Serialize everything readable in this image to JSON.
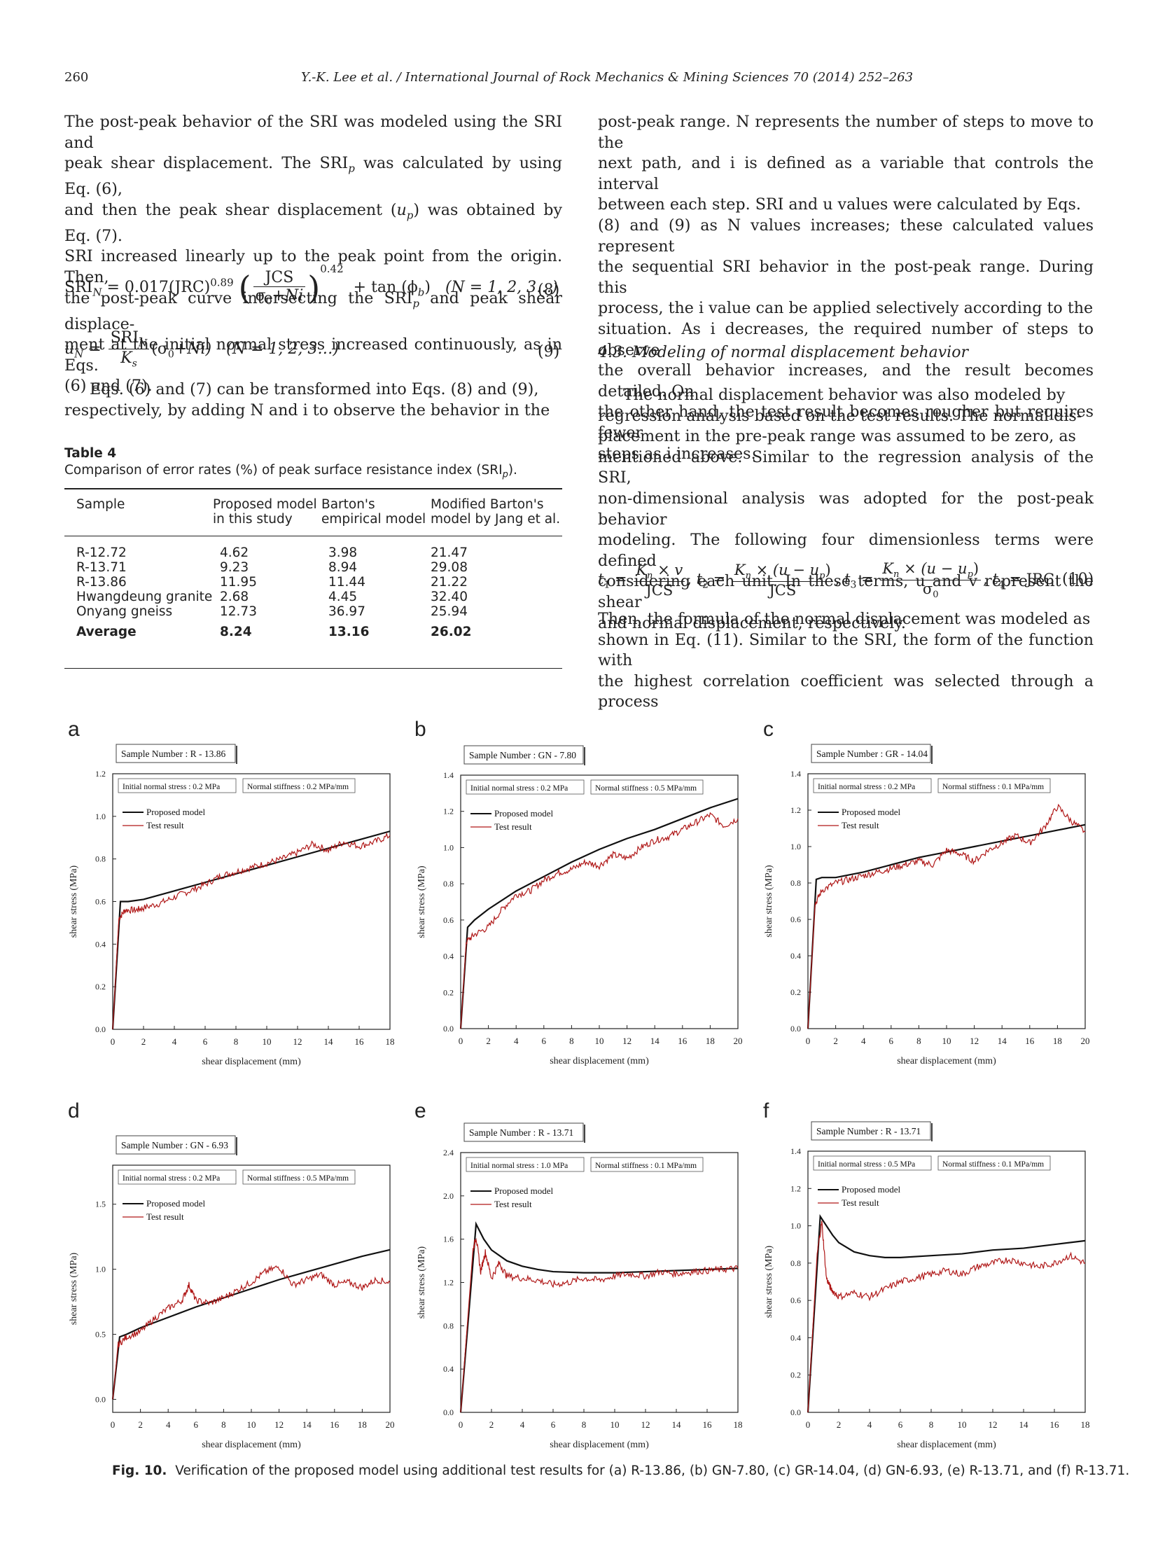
{
  "header": {
    "page_number": "260",
    "journal_line": "Y.-K. Lee et al. / International Journal of Rock Mechanics & Mining Sciences 70 (2014) 252–263"
  },
  "left_column": {
    "para1": [
      "The post-peak behavior of the SRI was modeled using the SRI and",
      "peak shear displacement. The SRI",
      " was calculated by using Eq. (6),",
      "and then the peak shear displacement (",
      ") was obtained by Eq. (7).",
      "SRI increased linearly up to the peak point from the origin. Then,",
      "the post-peak curve intersecting the SRI",
      " and peak shear displace-",
      "ment at the initial normal stress increased continuously, as in Eqs.",
      "(6) and (7)."
    ],
    "eq8": {
      "lhs": "SRI",
      "lhs_sub": "N",
      "coef": "= 0.017(JRC)",
      "exp1": "0.89",
      "num": "JCS",
      "den": "σ",
      "den_tail": "+Ni",
      "exp2": "0.42",
      "tail": "+ tan (ϕ",
      "tail_sub": "b",
      "cond": "(N = 1, 2, 3…)",
      "number": "(8)"
    },
    "eq9": {
      "lhs": "u",
      "lhs_sub": "N",
      "num": "SRI",
      "num_sub": "N",
      "den": "K",
      "den_sub": "s",
      "tail": "(σ",
      "tail2": "+Ni)",
      "cond": "(N = 1, 2, 3…)",
      "number": "(9)"
    },
    "para2": [
      "Eqs. (6) and (7) can be transformed into Eqs. (8) and (9),",
      "respectively, by adding N and i to observe the behavior in the"
    ]
  },
  "table4": {
    "label": "Table 4",
    "caption": "Comparison of error rates (%) of peak surface resistance index (SRI",
    "caption_sub": "p",
    "caption_end": ").",
    "headers": [
      [
        "Sample",
        ""
      ],
      [
        "Proposed model",
        "in this study"
      ],
      [
        "Barton's",
        "empirical model"
      ],
      [
        "Modified Barton's",
        "model by Jang et al."
      ]
    ],
    "rows": [
      [
        "R-12.72",
        "4.62",
        "3.98",
        "21.47"
      ],
      [
        "R-13.71",
        "9.23",
        "8.94",
        "29.08"
      ],
      [
        "R-13.86",
        "11.95",
        "11.44",
        "21.22"
      ],
      [
        "Hwangdeung granite",
        "2.68",
        "4.45",
        "32.40"
      ],
      [
        "Onyang gneiss",
        "12.73",
        "36.97",
        "25.94"
      ]
    ],
    "average": [
      "Average",
      "8.24",
      "13.16",
      "26.02"
    ]
  },
  "right_column": {
    "para1": [
      "post-peak range. N represents the number of steps to move to the",
      "next path, and i is defined as a variable that controls the interval",
      "between each step. SRI and u values were calculated by Eqs.",
      "(8) and (9) as N values increases; these calculated values represent",
      "the sequential SRI behavior in the post-peak range. During this",
      "process, the i value can be applied selectively according to the",
      "situation. As i decreases, the required number of steps to observe",
      "the overall behavior increases, and the result becomes detailed. On",
      "the other hand, the test result becomes rougher but requires fewer",
      "steps as i increases."
    ],
    "section_title": "4.3.  Modeling of normal displacement behavior",
    "para2": [
      "The normal displacement behavior was also modeled by",
      "regression analysis based on the test results. The normal dis-",
      "placement in the pre-peak range was assumed to be zero, as",
      "mentioned above. Similar to the regression analysis of the SRI,",
      "non-dimensional analysis was adopted for the post-peak behavior",
      "modeling. The following four dimensionless terms were defined",
      "considering each unit. In these terms, u and v represent the shear",
      "and normal displacement, respectively."
    ],
    "eq10": {
      "t1": "t",
      "t1_num": "K",
      "t1_num_tail": " × v",
      "t1_den": "JCS",
      "t2": "t",
      "t2_num": "K",
      "t2_num_tail": " × (u − u",
      "t2_den": "JCS",
      "t3": "t",
      "t3_num": "K",
      "t3_num_tail": " × (u − u",
      "t3_den": "σ",
      "t4": "t",
      "t4_tail": " = JRC",
      "number": "(10)"
    },
    "para3": [
      "Then, the formula of the normal displacement was modeled as",
      "shown in Eq. (11). Similar to the SRI, the form of the function with",
      "the highest correlation coefficient was selected through a process"
    ]
  },
  "figure": {
    "x_axis_label": "shear displacement (mm)",
    "y_axis_label": "shear stress (MPa)",
    "legend_model": "Proposed model",
    "legend_test": "Test result",
    "model_color": "#111111",
    "test_color": "#b01818",
    "caption_label": "Fig. 10.",
    "caption_text": "Verification of the proposed model using additional test results for (a) R-13.86, (b) GN-7.80, (c) GR-14.04, (d) GN-6.93, (e) R-13.71, and (f) R-13.71."
  },
  "chart_data": [
    {
      "type": "line",
      "panel": "a",
      "sample": "Sample Number : R - 13.86",
      "normal_stress": "Initial normal stress : 0.2 MPa",
      "stiffness": "Normal stiffness : 0.2 MPa/mm",
      "xlim": [
        0,
        18
      ],
      "ylim": [
        0,
        1.2
      ],
      "xticks": [
        "0",
        "2",
        "4",
        "6",
        "8",
        "10",
        "12",
        "14",
        "16",
        "18"
      ],
      "yticks": [
        "0.0",
        "0.2",
        "0.4",
        "0.6",
        "0.8",
        "1.0",
        "1.2"
      ],
      "series": [
        {
          "name": "Proposed model",
          "x": [
            0,
            0.5,
            1,
            2,
            4,
            6,
            8,
            10,
            12,
            14,
            16,
            18
          ],
          "y": [
            0,
            0.6,
            0.6,
            0.61,
            0.65,
            0.69,
            0.73,
            0.77,
            0.81,
            0.85,
            0.89,
            0.93
          ]
        },
        {
          "name": "Test result",
          "x": [
            0,
            0.4,
            0.8,
            1.5,
            2,
            3,
            4,
            5,
            6,
            7,
            8,
            9,
            10,
            11,
            12,
            13,
            14,
            15,
            16,
            17,
            18
          ],
          "y": [
            0,
            0.52,
            0.56,
            0.56,
            0.57,
            0.59,
            0.62,
            0.65,
            0.68,
            0.72,
            0.74,
            0.76,
            0.78,
            0.8,
            0.83,
            0.87,
            0.84,
            0.88,
            0.86,
            0.88,
            0.91
          ]
        }
      ]
    },
    {
      "type": "line",
      "panel": "b",
      "sample": "Sample Number : GN - 7.80",
      "normal_stress": "Initial normal stress : 0.2 MPa",
      "stiffness": "Normal stiffness : 0.5 MPa/mm",
      "xlim": [
        0,
        20
      ],
      "ylim": [
        0,
        1.4
      ],
      "xticks": [
        "0",
        "2",
        "4",
        "6",
        "8",
        "10",
        "12",
        "14",
        "16",
        "18",
        "20"
      ],
      "yticks": [
        "0.0",
        "0.2",
        "0.4",
        "0.6",
        "0.8",
        "1.0",
        "1.2",
        "1.4"
      ],
      "series": [
        {
          "name": "Proposed model",
          "x": [
            0,
            0.5,
            1,
            2,
            4,
            6,
            8,
            10,
            12,
            14,
            16,
            18,
            20
          ],
          "y": [
            0,
            0.56,
            0.6,
            0.66,
            0.76,
            0.84,
            0.92,
            0.99,
            1.05,
            1.1,
            1.16,
            1.22,
            1.27
          ]
        },
        {
          "name": "Test result",
          "x": [
            0,
            0.4,
            1,
            2,
            3,
            4,
            5,
            6,
            7,
            8,
            9,
            10,
            11,
            12,
            13,
            14,
            15,
            16,
            17,
            18,
            19,
            20
          ],
          "y": [
            0,
            0.48,
            0.52,
            0.56,
            0.66,
            0.74,
            0.76,
            0.82,
            0.86,
            0.88,
            0.92,
            0.9,
            0.96,
            0.94,
            1.0,
            1.04,
            1.06,
            1.1,
            1.14,
            1.18,
            1.12,
            1.16
          ]
        }
      ]
    },
    {
      "type": "line",
      "panel": "c",
      "sample": "Sample Number : GR - 14.04",
      "normal_stress": "Initial normal stress : 0.2 MPa",
      "stiffness": "Normal stiffness : 0.1 MPa/mm",
      "xlim": [
        0,
        20
      ],
      "ylim": [
        0,
        1.4
      ],
      "xticks": [
        "0",
        "2",
        "4",
        "6",
        "8",
        "10",
        "12",
        "14",
        "16",
        "18",
        "20"
      ],
      "yticks": [
        "0.0",
        "0.2",
        "0.4",
        "0.6",
        "0.8",
        "1.0",
        "1.2",
        "1.4"
      ],
      "series": [
        {
          "name": "Proposed model",
          "x": [
            0,
            0.6,
            1,
            2,
            4,
            6,
            8,
            10,
            12,
            14,
            16,
            18,
            20
          ],
          "y": [
            0,
            0.82,
            0.83,
            0.83,
            0.86,
            0.9,
            0.94,
            0.97,
            1.0,
            1.03,
            1.06,
            1.09,
            1.12
          ]
        },
        {
          "name": "Test result",
          "x": [
            0,
            0.5,
            1,
            2,
            3,
            4,
            5,
            6,
            7,
            8,
            9,
            10,
            11,
            12,
            13,
            14,
            15,
            16,
            17,
            18,
            19,
            20
          ],
          "y": [
            0,
            0.68,
            0.76,
            0.8,
            0.82,
            0.84,
            0.86,
            0.88,
            0.9,
            0.92,
            0.9,
            0.98,
            0.96,
            0.92,
            0.98,
            1.02,
            1.06,
            1.02,
            1.1,
            1.22,
            1.14,
            1.08
          ]
        }
      ]
    },
    {
      "type": "line",
      "panel": "d",
      "sample": "Sample Number : GN - 6.93",
      "normal_stress": "Initial normal stress : 0.2 MPa",
      "stiffness": "Normal stiffness : 0.5 MPa/mm",
      "xlim": [
        0,
        20
      ],
      "ylim": [
        -0.1,
        1.8
      ],
      "xticks": [
        "0",
        "2",
        "4",
        "6",
        "8",
        "10",
        "12",
        "14",
        "16",
        "18",
        "20"
      ],
      "yticks": [
        "0.0",
        "0.5",
        "1.0",
        "1.5"
      ],
      "ytick_values": [
        0,
        0.5,
        1.0,
        1.5
      ],
      "series": [
        {
          "name": "Proposed model",
          "x": [
            0,
            0.5,
            1,
            2,
            4,
            6,
            8,
            10,
            12,
            14,
            16,
            18,
            20
          ],
          "y": [
            0,
            0.48,
            0.5,
            0.55,
            0.63,
            0.71,
            0.78,
            0.85,
            0.92,
            0.98,
            1.04,
            1.1,
            1.15
          ]
        },
        {
          "name": "Test result",
          "x": [
            0,
            0.4,
            1,
            2,
            3,
            4,
            5,
            5.5,
            6,
            7,
            8,
            9,
            10,
            11,
            12,
            13,
            14,
            15,
            16,
            17,
            18,
            19,
            20
          ],
          "y": [
            0,
            0.42,
            0.48,
            0.52,
            0.62,
            0.7,
            0.76,
            0.88,
            0.76,
            0.74,
            0.78,
            0.84,
            0.9,
            0.98,
            1.02,
            0.88,
            0.92,
            0.96,
            0.88,
            0.9,
            0.86,
            0.92,
            0.9
          ]
        }
      ]
    },
    {
      "type": "line",
      "panel": "e",
      "sample": "Sample Number : R - 13.71",
      "normal_stress": "Initial normal stress : 1.0 MPa",
      "stiffness": "Normal stiffness : 0.1 MPa/mm",
      "xlim": [
        0,
        18
      ],
      "ylim": [
        0,
        2.4
      ],
      "xticks": [
        "0",
        "2",
        "4",
        "6",
        "8",
        "10",
        "12",
        "14",
        "16",
        "18"
      ],
      "yticks": [
        "0.0",
        "0.4",
        "0.8",
        "1.2",
        "1.6",
        "2.0",
        "2.4"
      ],
      "series": [
        {
          "name": "Proposed model",
          "x": [
            0,
            1,
            1.5,
            2,
            3,
            4,
            5,
            6,
            8,
            10,
            12,
            14,
            16,
            18
          ],
          "y": [
            0,
            1.74,
            1.6,
            1.5,
            1.4,
            1.35,
            1.32,
            1.3,
            1.29,
            1.29,
            1.3,
            1.31,
            1.32,
            1.33
          ]
        },
        {
          "name": "Test result",
          "x": [
            0,
            0.8,
            1,
            1.3,
            1.6,
            2,
            2.5,
            3,
            4,
            5,
            6,
            7,
            8,
            9,
            10,
            11,
            12,
            13,
            14,
            15,
            16,
            17,
            18
          ],
          "y": [
            0,
            1.5,
            1.62,
            1.3,
            1.48,
            1.24,
            1.38,
            1.26,
            1.24,
            1.22,
            1.18,
            1.2,
            1.24,
            1.22,
            1.26,
            1.28,
            1.26,
            1.3,
            1.28,
            1.3,
            1.31,
            1.32,
            1.33
          ]
        }
      ]
    },
    {
      "type": "line",
      "panel": "f",
      "sample": "Sample Number : R - 13.71",
      "normal_stress": "Initial normal stress : 0.5 MPa",
      "stiffness": "Normal stiffness : 0.1 MPa/mm",
      "xlim": [
        0,
        18
      ],
      "ylim": [
        0,
        1.4
      ],
      "xticks": [
        "0",
        "2",
        "4",
        "6",
        "8",
        "10",
        "12",
        "14",
        "16",
        "18"
      ],
      "yticks": [
        "0.0",
        "0.2",
        "0.4",
        "0.6",
        "0.8",
        "1.0",
        "1.2",
        "1.4"
      ],
      "series": [
        {
          "name": "Proposed model",
          "x": [
            0,
            0.8,
            1.2,
            1.6,
            2,
            3,
            4,
            5,
            6,
            8,
            10,
            12,
            14,
            16,
            18
          ],
          "y": [
            0,
            1.05,
            1.0,
            0.95,
            0.91,
            0.86,
            0.84,
            0.83,
            0.83,
            0.84,
            0.85,
            0.87,
            0.88,
            0.9,
            0.92
          ]
        },
        {
          "name": "Test result",
          "x": [
            0,
            0.6,
            0.9,
            1.2,
            1.5,
            2,
            3,
            4,
            5,
            6,
            7,
            8,
            9,
            10,
            11,
            12,
            13,
            14,
            15,
            16,
            17,
            18
          ],
          "y": [
            0,
            0.85,
            1.02,
            0.72,
            0.66,
            0.62,
            0.64,
            0.62,
            0.66,
            0.7,
            0.72,
            0.74,
            0.76,
            0.74,
            0.78,
            0.8,
            0.82,
            0.8,
            0.78,
            0.8,
            0.84,
            0.8
          ]
        }
      ]
    }
  ]
}
